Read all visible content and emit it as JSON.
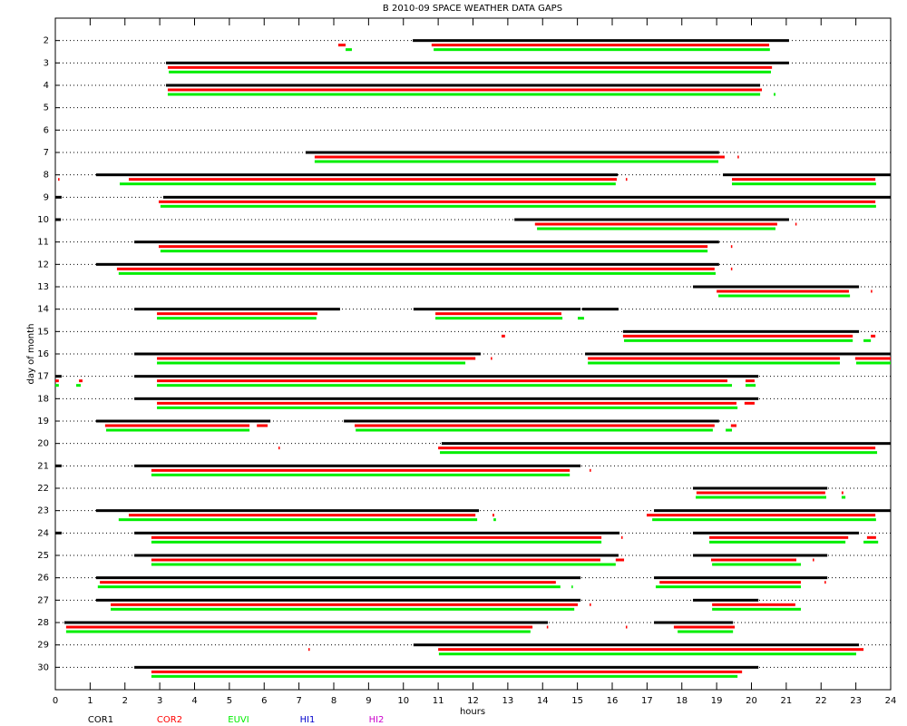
{
  "chart_data": {
    "type": "timeline",
    "title": "B  2010-09 SPACE WEATHER DATA GAPS",
    "x_label": "hours",
    "y_label": "day of month",
    "xlim": [
      0,
      24
    ],
    "xticks": [
      0,
      1,
      2,
      3,
      4,
      5,
      6,
      7,
      8,
      9,
      10,
      11,
      12,
      13,
      14,
      15,
      16,
      17,
      18,
      19,
      20,
      21,
      22,
      23,
      24
    ],
    "ylim": [
      1,
      31
    ],
    "y_inverted": true,
    "yticks": [
      2,
      3,
      4,
      5,
      6,
      7,
      8,
      9,
      10,
      11,
      12,
      13,
      14,
      15,
      16,
      17,
      18,
      19,
      20,
      21,
      22,
      23,
      24,
      25,
      26,
      27,
      28,
      29,
      30
    ],
    "grid": true,
    "series": [
      {
        "name": "COR1",
        "color": "#000000",
        "gaps": [
          [
            2,
            10.27,
            21.08
          ],
          [
            3,
            3.18,
            21.08
          ],
          [
            4,
            3.18,
            20.25
          ],
          [
            7,
            7.19,
            19.07
          ],
          [
            8,
            1.17,
            16.16
          ],
          [
            8,
            19.18,
            24
          ],
          [
            9,
            0,
            0.18
          ],
          [
            9,
            3.1,
            24
          ],
          [
            10,
            0,
            0.16
          ],
          [
            10,
            13.19,
            21.08
          ],
          [
            11,
            2.27,
            19.07
          ],
          [
            12,
            1.17,
            19.07
          ],
          [
            13,
            18.32,
            23.09
          ],
          [
            14,
            2.27,
            8.18
          ],
          [
            14,
            10.29,
            15.09
          ],
          [
            14,
            15.14,
            16.18
          ],
          [
            15,
            16.31,
            23.09
          ],
          [
            16,
            2.27,
            12.22
          ],
          [
            16,
            15.22,
            24
          ],
          [
            17,
            0,
            0.18
          ],
          [
            17,
            2.27,
            20.2
          ],
          [
            18,
            2.27,
            20.2
          ],
          [
            19,
            1.17,
            6.18
          ],
          [
            19,
            8.29,
            19.07
          ],
          [
            20,
            11.1,
            24
          ],
          [
            21,
            0,
            0.18
          ],
          [
            21,
            2.27,
            15.09
          ],
          [
            22,
            18.32,
            22.18
          ],
          [
            23,
            1.17,
            12.17
          ],
          [
            23,
            17.2,
            24
          ],
          [
            24,
            0,
            0.18
          ],
          [
            24,
            2.27,
            16.21
          ],
          [
            24,
            18.32,
            23.09
          ],
          [
            25,
            2.27,
            16.18
          ],
          [
            25,
            18.32,
            22.18
          ],
          [
            26,
            1.17,
            15.09
          ],
          [
            26,
            17.2,
            22.18
          ],
          [
            27,
            1.17,
            15.09
          ],
          [
            27,
            18.32,
            20.2
          ],
          [
            28,
            0.26,
            14.15
          ],
          [
            28,
            17.2,
            19.47
          ],
          [
            29,
            10.29,
            23.09
          ],
          [
            30,
            2.27,
            20.2
          ]
        ]
      },
      {
        "name": "COR2",
        "color": "#ff0000",
        "gaps": [
          [
            2,
            8.13,
            8.34
          ],
          [
            2,
            10.81,
            20.51
          ],
          [
            3,
            3.23,
            20.59
          ],
          [
            4,
            3.23,
            20.3
          ],
          [
            7,
            7.45,
            19.23
          ],
          [
            7,
            19.6,
            19.64
          ],
          [
            8,
            0.08,
            0.12
          ],
          [
            8,
            2.11,
            16.13
          ],
          [
            8,
            16.39,
            16.43
          ],
          [
            8,
            19.44,
            23.56
          ],
          [
            9,
            2.97,
            23.56
          ],
          [
            10,
            13.78,
            20.74
          ],
          [
            10,
            21.26,
            21.3
          ],
          [
            11,
            2.97,
            18.74
          ],
          [
            11,
            19.41,
            19.45
          ],
          [
            12,
            1.77,
            18.94
          ],
          [
            12,
            19.41,
            19.45
          ],
          [
            13,
            19,
            22.8
          ],
          [
            13,
            23.43,
            23.47
          ],
          [
            14,
            2.92,
            7.53
          ],
          [
            14,
            10.92,
            14.54
          ],
          [
            15,
            12.82,
            12.92
          ],
          [
            15,
            16.31,
            22.91
          ],
          [
            15,
            23.43,
            23.56
          ],
          [
            16,
            2.92,
            12.07
          ],
          [
            16,
            12.51,
            12.55
          ],
          [
            16,
            15.3,
            22.54
          ],
          [
            16,
            22.98,
            24
          ],
          [
            17,
            0,
            0.1
          ],
          [
            17,
            0.68,
            0.78
          ],
          [
            17,
            2.92,
            19.31
          ],
          [
            17,
            19.83,
            20.09
          ],
          [
            18,
            2.92,
            19.57
          ],
          [
            18,
            19.8,
            20.09
          ],
          [
            19,
            1.43,
            5.58
          ],
          [
            19,
            5.79,
            6.1
          ],
          [
            19,
            8.6,
            18.94
          ],
          [
            19,
            19.41,
            19.57
          ],
          [
            20,
            6.41,
            6.45
          ],
          [
            20,
            11,
            23.56
          ],
          [
            21,
            2.76,
            14.78
          ],
          [
            21,
            15.35,
            15.39
          ],
          [
            22,
            18.42,
            22.12
          ],
          [
            22,
            22.59,
            22.64
          ],
          [
            23,
            2.11,
            12.07
          ],
          [
            23,
            12.56,
            12.61
          ],
          [
            23,
            16.99,
            23.56
          ],
          [
            24,
            2.76,
            15.69
          ],
          [
            24,
            16.26,
            16.3
          ],
          [
            24,
            18.79,
            22.78
          ],
          [
            24,
            23.32,
            23.58
          ],
          [
            25,
            2.76,
            15.66
          ],
          [
            25,
            16.1,
            16.34
          ],
          [
            25,
            18.84,
            21.29
          ],
          [
            25,
            21.76,
            21.8
          ],
          [
            26,
            1.28,
            14.38
          ],
          [
            26,
            17.36,
            21.42
          ],
          [
            26,
            22.1,
            22.14
          ],
          [
            27,
            1.59,
            15.01
          ],
          [
            27,
            15.35,
            15.39
          ],
          [
            27,
            18.87,
            21.26
          ],
          [
            28,
            0.31,
            13.71
          ],
          [
            28,
            14.12,
            14.16
          ],
          [
            28,
            16.39,
            16.43
          ],
          [
            28,
            17.77,
            19.52
          ],
          [
            29,
            7.27,
            7.31
          ],
          [
            29,
            11,
            23.22
          ],
          [
            30,
            2.76,
            19.73
          ]
        ]
      },
      {
        "name": "EUVI",
        "color": "#00ee00",
        "gaps": [
          [
            2,
            8.34,
            8.52
          ],
          [
            2,
            10.87,
            20.53
          ],
          [
            3,
            3.26,
            20.56
          ],
          [
            4,
            3.23,
            20.25
          ],
          [
            4,
            20.64,
            20.69
          ],
          [
            7,
            7.45,
            19.05
          ],
          [
            8,
            1.85,
            16.1
          ],
          [
            8,
            19.44,
            23.58
          ],
          [
            9,
            3.02,
            23.58
          ],
          [
            10,
            13.84,
            20.69
          ],
          [
            11,
            3.02,
            18.74
          ],
          [
            12,
            1.82,
            18.97
          ],
          [
            13,
            19.05,
            22.83
          ],
          [
            14,
            2.92,
            7.5
          ],
          [
            14,
            10.92,
            14.57
          ],
          [
            14,
            15.01,
            15.19
          ],
          [
            15,
            16.34,
            22.91
          ],
          [
            15,
            23.22,
            23.43
          ],
          [
            16,
            2.92,
            11.78
          ],
          [
            16,
            15.3,
            22.54
          ],
          [
            16,
            23.01,
            24
          ],
          [
            17,
            0,
            0.1
          ],
          [
            17,
            0.6,
            0.73
          ],
          [
            17,
            2.92,
            19.44
          ],
          [
            17,
            19.83,
            20.12
          ],
          [
            18,
            2.92,
            19.6
          ],
          [
            19,
            1.46,
            5.58
          ],
          [
            19,
            8.63,
            18.89
          ],
          [
            19,
            19.26,
            19.44
          ],
          [
            20,
            11.05,
            23.61
          ],
          [
            21,
            2.76,
            14.78
          ],
          [
            22,
            18.4,
            22.15
          ],
          [
            22,
            22.59,
            22.7
          ],
          [
            23,
            1.82,
            12.12
          ],
          [
            23,
            12.59,
            12.66
          ],
          [
            23,
            17.15,
            23.58
          ],
          [
            24,
            2.76,
            15.69
          ],
          [
            24,
            18.79,
            22.7
          ],
          [
            24,
            23.22,
            23.64
          ],
          [
            25,
            2.76,
            16.1
          ],
          [
            25,
            18.87,
            21.42
          ],
          [
            26,
            1.22,
            14.51
          ],
          [
            26,
            14.83,
            14.87
          ],
          [
            26,
            17.25,
            21.42
          ],
          [
            27,
            1.59,
            14.91
          ],
          [
            27,
            18.87,
            21.42
          ],
          [
            28,
            0.31,
            13.65
          ],
          [
            28,
            17.88,
            19.47
          ],
          [
            29,
            11.02,
            23.01
          ],
          [
            30,
            2.76,
            19.6
          ]
        ]
      },
      {
        "name": "HI1",
        "color": "#0000cc",
        "gaps": []
      },
      {
        "name": "HI2",
        "color": "#cc00cc",
        "gaps": []
      }
    ]
  }
}
